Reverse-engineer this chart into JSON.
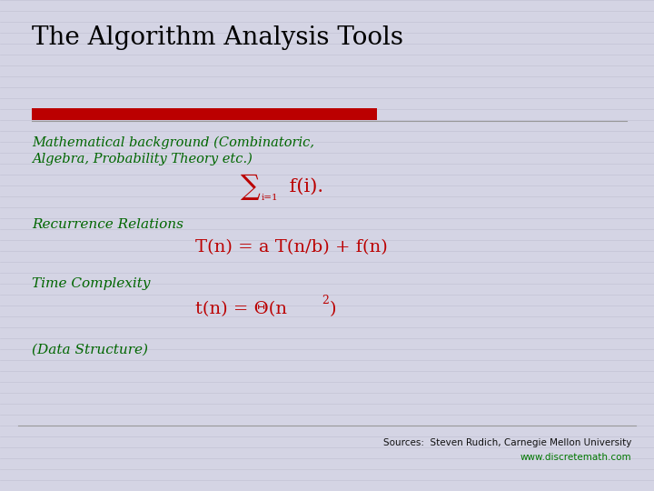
{
  "title": "The Algorithm Analysis Tools",
  "title_color": "#000000",
  "title_fontsize": 20,
  "background_color": "#d4d4e4",
  "red_bar_color": "#bb0000",
  "green_color": "#006600",
  "red_formula_color": "#bb0000",
  "line_color": "#999999",
  "math_bg_line_color": "#b8b8cc",
  "math_text_line1": "Mathematical background (Combinatoric,",
  "math_text_line2": "Algebra, Probability Theory etc.)",
  "sigma_text": "∑",
  "sigma_sub": "i=1",
  "sigma_rest": " f(i).",
  "recurrence_label": "Recurrence Relations",
  "recurrence_formula": "T(n) = a T(n/b) + f(n)",
  "time_label": "Time Complexity",
  "time_formula": "t(n) = Θ(n",
  "time_superscript": "2",
  "time_close": ")",
  "data_structure": "(Data Structure)",
  "source_line1": "Sources:  Steven Rudich, Carnegie Mellon University",
  "source_line2": "www.discretemath.com",
  "source_color": "#111111",
  "source_color2": "#007700"
}
